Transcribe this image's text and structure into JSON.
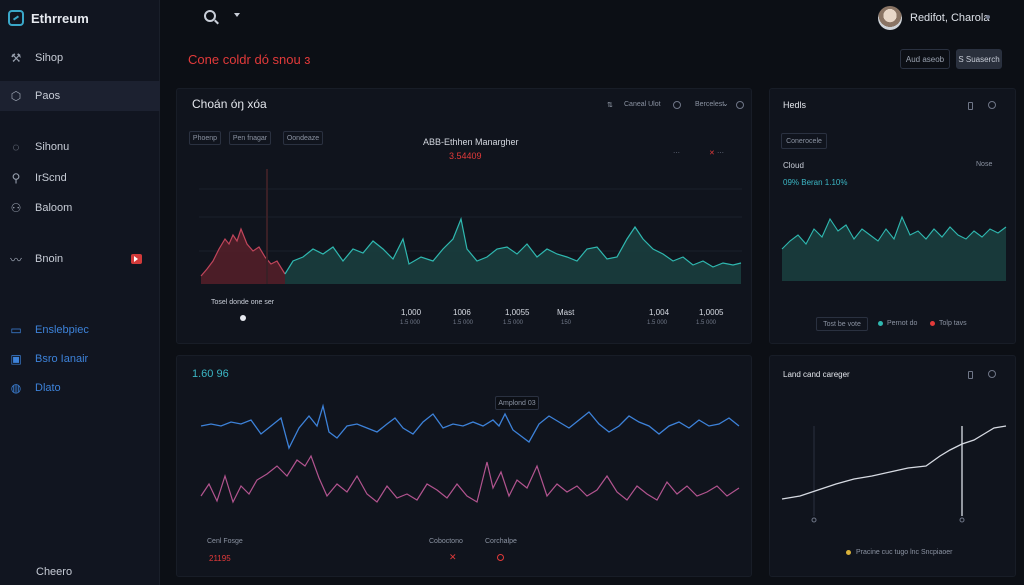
{
  "app": {
    "title": "Ethrreum"
  },
  "sidebar": {
    "items": [
      {
        "label": "Sihop",
        "icon": "tools-icon"
      },
      {
        "label": "Paos",
        "icon": "box-icon"
      },
      {
        "label": "Sihonu",
        "icon": "chat-icon"
      },
      {
        "label": "IrScnd",
        "icon": "pin-icon"
      },
      {
        "label": "Baloom",
        "icon": "user-icon"
      },
      {
        "label": "Bnoin",
        "icon": "wave-icon"
      },
      {
        "label": "Enslebpiec",
        "icon": "folder-icon"
      },
      {
        "label": "Bsro Ianair",
        "icon": "inbox-icon"
      },
      {
        "label": "Dlato",
        "icon": "globe-icon"
      },
      {
        "label": "Cheero",
        "icon": "none"
      }
    ]
  },
  "topbar": {
    "user_name": "Redifot, Charola"
  },
  "page": {
    "title": "Cone coldr dó snou ɜ"
  },
  "actions": {
    "secondary": "Aud aseob",
    "primary": "S Suaserch"
  },
  "main_panel": {
    "title": "Choán óŋ xóa",
    "header_chips": [
      "Caneal Ulot",
      "Bercelest"
    ],
    "tabs": [
      "Phoenp",
      "Pen fnagar",
      "Oondeaze"
    ],
    "chart_label": "ABB-Ethhen Manargher",
    "chart_value": "3.54409",
    "footer_label": "Tosel donde one ser",
    "stats": [
      {
        "value": "1,000",
        "sub": "1.5 000"
      },
      {
        "value": "1006",
        "sub": "1.5 000"
      },
      {
        "value": "1,0055",
        "sub": "1.5 000"
      },
      {
        "value": "Mast",
        "sub": "150"
      },
      {
        "value": "1,004",
        "sub": "1.5 000"
      },
      {
        "value": "1,0005",
        "sub": "1.5 000"
      }
    ]
  },
  "right_panel": {
    "title": "Hedls",
    "chip": "Conerocele",
    "label": "Cloud",
    "select": "Nose",
    "metric": "09% Beran 1.10%",
    "legend": [
      "Tost be vote",
      "Pernot do",
      "Tolp tavs"
    ]
  },
  "lower_panel": {
    "title": "1.60 96",
    "tooltip": "Amplond 03",
    "footer_left": "Cenl Fosge",
    "footer_value": "21195",
    "footer_mid": [
      "Coboctono",
      "Corchalpe"
    ]
  },
  "lower_right_panel": {
    "title": "Land cand careger",
    "footer": "Pracine cuc tugo lnc Sncpiaoer"
  },
  "colors": {
    "accent_red": "#e23a3a",
    "accent_blue": "#3d82d9",
    "teal": "#2fb8b0",
    "magenta": "#b2548f"
  }
}
